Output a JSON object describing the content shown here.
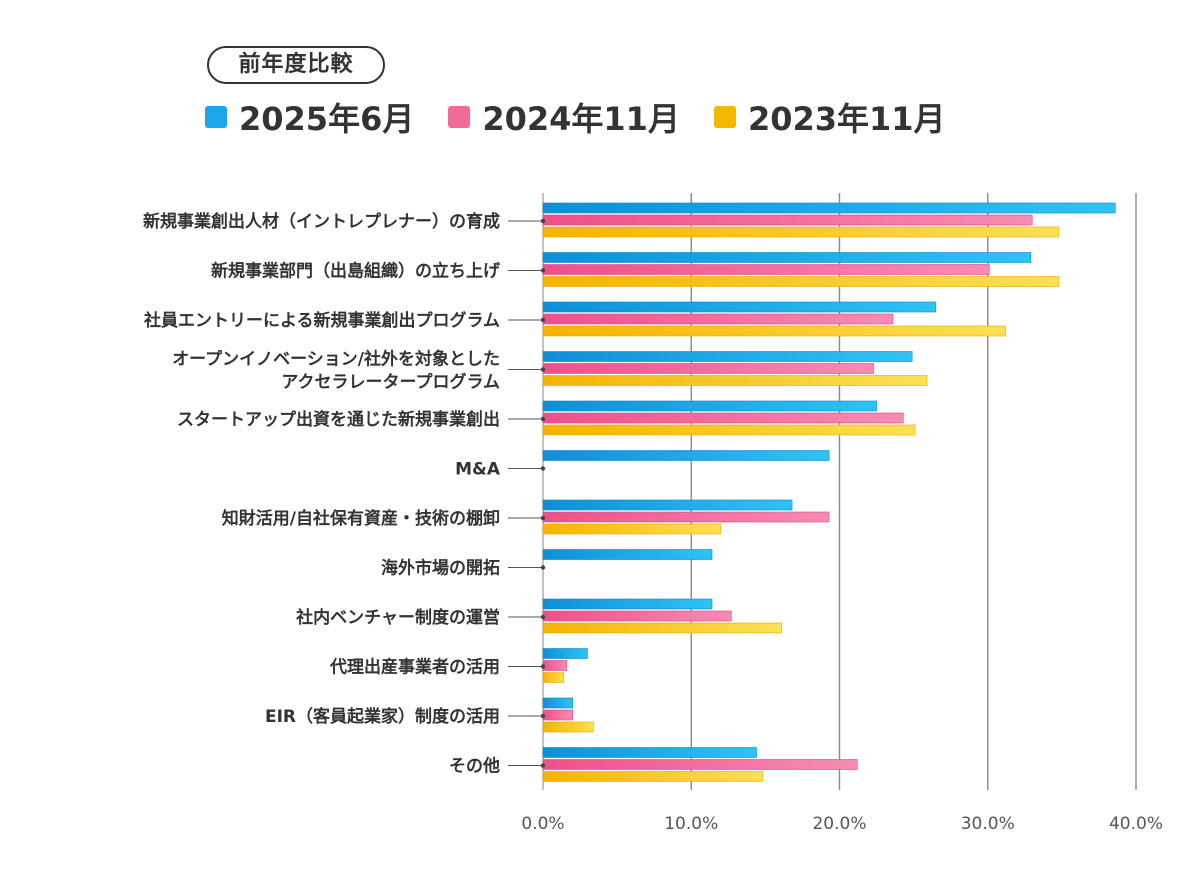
{
  "badge": "前年度比較",
  "chart_data": {
    "type": "bar",
    "orientation": "horizontal",
    "title": "",
    "xlabel": "",
    "ylabel": "",
    "xlim": [
      0,
      40
    ],
    "x_ticks": [
      "0.0%",
      "10.0%",
      "20.0%",
      "30.0%",
      "40.0%"
    ],
    "grid": "vertical",
    "legend_position": "top",
    "categories": [
      [
        "新規事業創出人材（イントレプレナー）の育成"
      ],
      [
        "新規事業部門（出島組織）の立ち上げ"
      ],
      [
        "社員エントリーによる新規事業創出プログラム"
      ],
      [
        "オープンイノベーション/社外を対象とした",
        "アクセラレータープログラム"
      ],
      [
        "スタートアップ出資を通じた新規事業創出"
      ],
      [
        "M&A"
      ],
      [
        "知財活用/自社保有資産・技術の棚卸"
      ],
      [
        "海外市場の開拓"
      ],
      [
        "社内ベンチャー制度の運営"
      ],
      [
        "代理出産事業者の活用"
      ],
      [
        "EIR（客員起業家）制度の活用"
      ],
      [
        "その他"
      ]
    ],
    "series": [
      {
        "name": "2025年6月",
        "color": "#1aa6e8",
        "values": [
          38.6,
          32.9,
          26.5,
          24.9,
          22.5,
          19.3,
          16.8,
          11.4,
          11.4,
          3.0,
          2.0,
          14.4
        ]
      },
      {
        "name": "2024年11月",
        "color": "#f26a9a",
        "values": [
          33.0,
          30.1,
          23.6,
          22.3,
          24.3,
          null,
          19.3,
          null,
          12.7,
          1.6,
          2.0,
          21.2
        ]
      },
      {
        "name": "2023年11月",
        "color": "#f5b800",
        "values": [
          34.8,
          34.8,
          31.2,
          25.9,
          25.1,
          null,
          12.0,
          null,
          16.1,
          1.4,
          3.4,
          14.8
        ]
      }
    ]
  }
}
